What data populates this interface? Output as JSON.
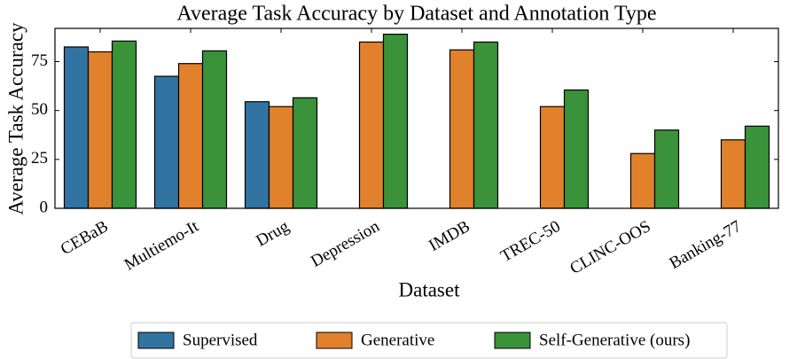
{
  "chart_data": {
    "type": "bar",
    "title": "Average Task Accuracy by Dataset and Annotation Type",
    "x_label": "Dataset",
    "y_label": "Average Task Accuracy",
    "categories": [
      "CEBaB",
      "Multiemo-It",
      "Drug",
      "Depression",
      "IMDB",
      "TREC-50",
      "CLINC-OOS",
      "Banking-77"
    ],
    "series": [
      {
        "name": "Supervised",
        "color": "#3274a1",
        "values": [
          82.5,
          67.5,
          54.5,
          null,
          null,
          null,
          null,
          null
        ]
      },
      {
        "name": "Generative",
        "color": "#e1812c",
        "values": [
          80,
          74,
          52,
          85,
          81,
          52,
          28,
          35
        ]
      },
      {
        "name": "Self-Generative (ours)",
        "color": "#3a923a",
        "values": [
          85.5,
          80.5,
          56.5,
          89,
          85,
          60.5,
          40,
          42
        ]
      }
    ],
    "ylim": [
      0,
      92
    ],
    "yticks": [
      0,
      25,
      50,
      75
    ],
    "legend": "bottom"
  }
}
